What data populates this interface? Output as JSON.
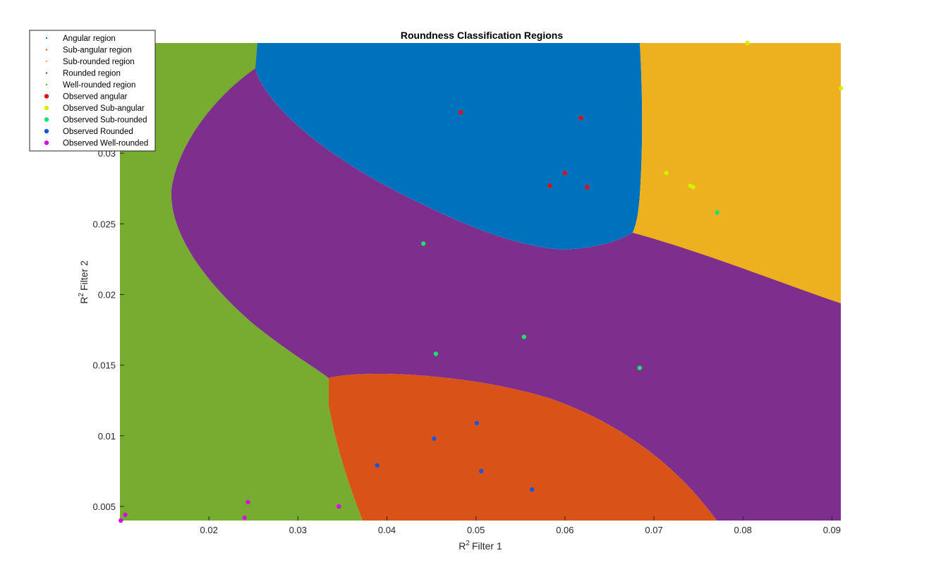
{
  "chart_data": {
    "type": "scatter",
    "title": "Roundness Classification Regions",
    "xlabel": "Filter 1",
    "ylabel": "Filter 2",
    "label_prefix": "R",
    "label_sup": "2",
    "xlim": [
      0.01,
      0.091
    ],
    "ylim": [
      0.004,
      0.0378
    ],
    "x_ticks": [
      {
        "value": 0.02,
        "label": "0.02"
      },
      {
        "value": 0.03,
        "label": "0.03"
      },
      {
        "value": 0.04,
        "label": "0.04"
      },
      {
        "value": 0.05,
        "label": "0.05"
      },
      {
        "value": 0.06,
        "label": "0.06"
      },
      {
        "value": 0.07,
        "label": "0.07"
      },
      {
        "value": 0.08,
        "label": "0.08"
      },
      {
        "value": 0.09,
        "label": "0.09"
      }
    ],
    "y_ticks": [
      {
        "value": 0.005,
        "label": "0.005"
      },
      {
        "value": 0.01,
        "label": "0.01"
      },
      {
        "value": 0.015,
        "label": "0.015"
      },
      {
        "value": 0.02,
        "label": "0.02"
      },
      {
        "value": 0.025,
        "label": "0.025"
      },
      {
        "value": 0.03,
        "label": "0.03"
      }
    ],
    "grid": false,
    "legend_position": "top-left",
    "regions": [
      {
        "name": "Angular region",
        "color": "#0072BD"
      },
      {
        "name": "Sub-angular region",
        "color": "#D95319"
      },
      {
        "name": "Sub-rounded region",
        "color": "#EDB120"
      },
      {
        "name": "Rounded region",
        "color": "#7E2F8E"
      },
      {
        "name": "Well-rounded region",
        "color": "#77AC30"
      }
    ],
    "series": [
      {
        "name": "Observed angular",
        "color": "#E01010",
        "points": [
          [
            0.0483,
            0.0329
          ],
          [
            0.0618,
            0.0325
          ],
          [
            0.06,
            0.0286
          ],
          [
            0.0583,
            0.0277
          ],
          [
            0.0625,
            0.0276
          ]
        ]
      },
      {
        "name": "Observed Sub-angular",
        "color": "#D4F000",
        "points": [
          [
            0.0805,
            0.0378
          ],
          [
            0.091,
            0.0346
          ],
          [
            0.0714,
            0.0286
          ],
          [
            0.0741,
            0.0277
          ],
          [
            0.0744,
            0.0276
          ]
        ]
      },
      {
        "name": "Observed Sub-rounded",
        "color": "#20E070",
        "points": [
          [
            0.0771,
            0.0258
          ],
          [
            0.0441,
            0.0236
          ],
          [
            0.0554,
            0.017
          ],
          [
            0.0455,
            0.0158
          ],
          [
            0.0684,
            0.0148
          ]
        ]
      },
      {
        "name": "Observed Rounded",
        "color": "#1A55E0",
        "points": [
          [
            0.0501,
            0.0109
          ],
          [
            0.0453,
            0.0098
          ],
          [
            0.0389,
            0.0079
          ],
          [
            0.0506,
            0.0075
          ],
          [
            0.0563,
            0.0062
          ]
        ]
      },
      {
        "name": "Observed Well-rounded",
        "color": "#D010E0",
        "points": [
          [
            0.0244,
            0.0053
          ],
          [
            0.0346,
            0.005
          ],
          [
            0.0106,
            0.0044
          ],
          [
            0.024,
            0.0042
          ],
          [
            0.0101,
            0.004
          ]
        ]
      }
    ]
  }
}
